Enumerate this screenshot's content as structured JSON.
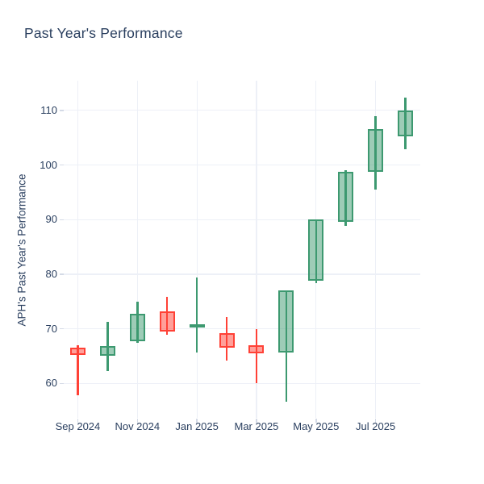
{
  "title": "Past Year's Performance",
  "chart_data": {
    "type": "candlestick",
    "title": "Past Year's Performance",
    "xlabel": "",
    "ylabel": "APH's Past Year's Performance",
    "categories": [
      "Sep 2024",
      "Oct 2024",
      "Nov 2024",
      "Dec 2024",
      "Jan 2025",
      "Feb 2025",
      "Mar 2025",
      "Apr 2025",
      "May 2025",
      "Jun 2025",
      "Jul 2025",
      "Aug 2025"
    ],
    "open": [
      66.5,
      65.1,
      67.8,
      73.2,
      70.2,
      69.2,
      67.0,
      65.6,
      78.8,
      89.6,
      98.7,
      105.3
    ],
    "high": [
      67.0,
      71.3,
      74.9,
      75.8,
      79.4,
      72.1,
      70.0,
      77.1,
      90.1,
      99.1,
      108.9,
      112.4
    ],
    "low": [
      57.9,
      62.2,
      67.4,
      68.9,
      65.7,
      64.2,
      60.0,
      56.6,
      78.4,
      88.9,
      95.5,
      102.9
    ],
    "close": [
      65.2,
      66.9,
      72.7,
      69.5,
      70.9,
      66.5,
      65.5,
      77.0,
      90.0,
      98.8,
      106.6,
      110.0
    ],
    "x_tick_labels": [
      "Sep 2024",
      "Nov 2024",
      "Jan 2025",
      "Mar 2025",
      "May 2025",
      "Jul 2025"
    ],
    "x_tick_indices": [
      0,
      2,
      4,
      6,
      8,
      10
    ],
    "y_ticks": [
      60,
      70,
      80,
      90,
      100,
      110
    ],
    "ylim": [
      53.7,
      115.45
    ],
    "grid": true,
    "legend": false,
    "colors": {
      "increasing_line": "#3D9970",
      "increasing_fill": "rgba(61,153,112,0.5)",
      "decreasing_line": "#FF4136",
      "decreasing_fill": "rgba(255,65,54,0.5)",
      "text": "#2a3f5f",
      "grid": "#edf0f7",
      "tick": "#d4dae6",
      "background": "#ffffff"
    }
  }
}
